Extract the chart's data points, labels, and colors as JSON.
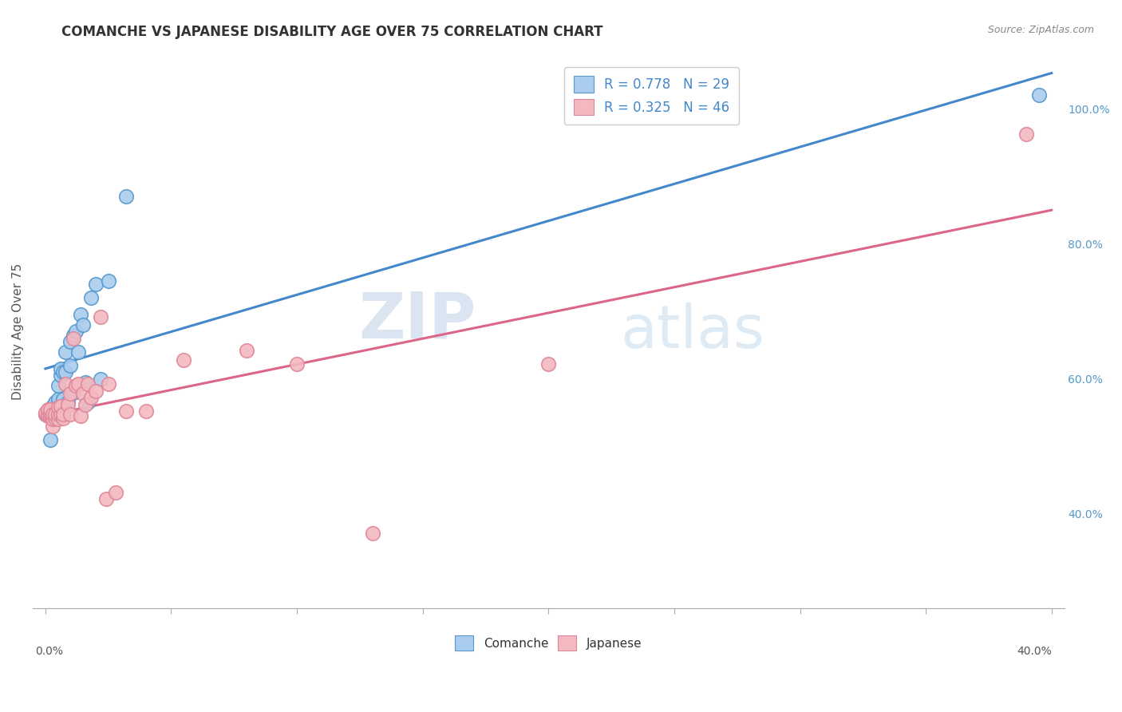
{
  "title": "COMANCHE VS JAPANESE DISABILITY AGE OVER 75 CORRELATION CHART",
  "source": "Source: ZipAtlas.com",
  "ylabel": "Disability Age Over 75",
  "legend_comanche": "R = 0.778   N = 29",
  "legend_japanese": "R = 0.325   N = 46",
  "comanche_color": "#aaccee",
  "japanese_color": "#f4b8c0",
  "comanche_edge_color": "#5599cc",
  "japanese_edge_color": "#dd8899",
  "comanche_line_color": "#4488cc",
  "japanese_line_color": "#dd6688",
  "watermark_zip": "ZIP",
  "watermark_atlas": "atlas",
  "right_ytick_labels": [
    "40.0%",
    "60.0%",
    "80.0%",
    "100.0%"
  ],
  "right_ytick_positions": [
    0.4,
    0.6,
    0.8,
    1.0
  ],
  "comanche_x": [
    0.0,
    0.002,
    0.003,
    0.004,
    0.005,
    0.005,
    0.006,
    0.006,
    0.007,
    0.007,
    0.008,
    0.008,
    0.009,
    0.01,
    0.01,
    0.011,
    0.011,
    0.012,
    0.013,
    0.014,
    0.015,
    0.016,
    0.017,
    0.018,
    0.02,
    0.022,
    0.025,
    0.032,
    0.395
  ],
  "comanche_y": [
    0.548,
    0.51,
    0.56,
    0.565,
    0.57,
    0.59,
    0.605,
    0.615,
    0.57,
    0.61,
    0.61,
    0.64,
    0.565,
    0.62,
    0.655,
    0.665,
    0.58,
    0.67,
    0.64,
    0.695,
    0.68,
    0.595,
    0.565,
    0.72,
    0.74,
    0.6,
    0.745,
    0.87,
    1.02
  ],
  "japanese_x": [
    0.0,
    0.0,
    0.001,
    0.001,
    0.001,
    0.002,
    0.002,
    0.002,
    0.002,
    0.003,
    0.003,
    0.003,
    0.004,
    0.004,
    0.005,
    0.005,
    0.005,
    0.006,
    0.006,
    0.007,
    0.007,
    0.008,
    0.009,
    0.01,
    0.01,
    0.011,
    0.012,
    0.013,
    0.014,
    0.015,
    0.016,
    0.017,
    0.018,
    0.02,
    0.022,
    0.024,
    0.025,
    0.028,
    0.032,
    0.04,
    0.055,
    0.08,
    0.1,
    0.13,
    0.2,
    0.39
  ],
  "japanese_y": [
    0.548,
    0.55,
    0.545,
    0.548,
    0.555,
    0.545,
    0.548,
    0.55,
    0.555,
    0.53,
    0.54,
    0.548,
    0.542,
    0.548,
    0.54,
    0.548,
    0.558,
    0.548,
    0.56,
    0.542,
    0.548,
    0.592,
    0.562,
    0.548,
    0.578,
    0.66,
    0.59,
    0.592,
    0.545,
    0.578,
    0.562,
    0.592,
    0.572,
    0.582,
    0.692,
    0.422,
    0.592,
    0.432,
    0.552,
    0.552,
    0.628,
    0.642,
    0.622,
    0.372,
    0.622,
    0.962
  ],
  "xlim": [
    -0.005,
    0.405
  ],
  "ylim": [
    0.26,
    1.08
  ],
  "background_color": "#ffffff",
  "grid_color": "#dddddd",
  "axis_color": "#cccccc"
}
